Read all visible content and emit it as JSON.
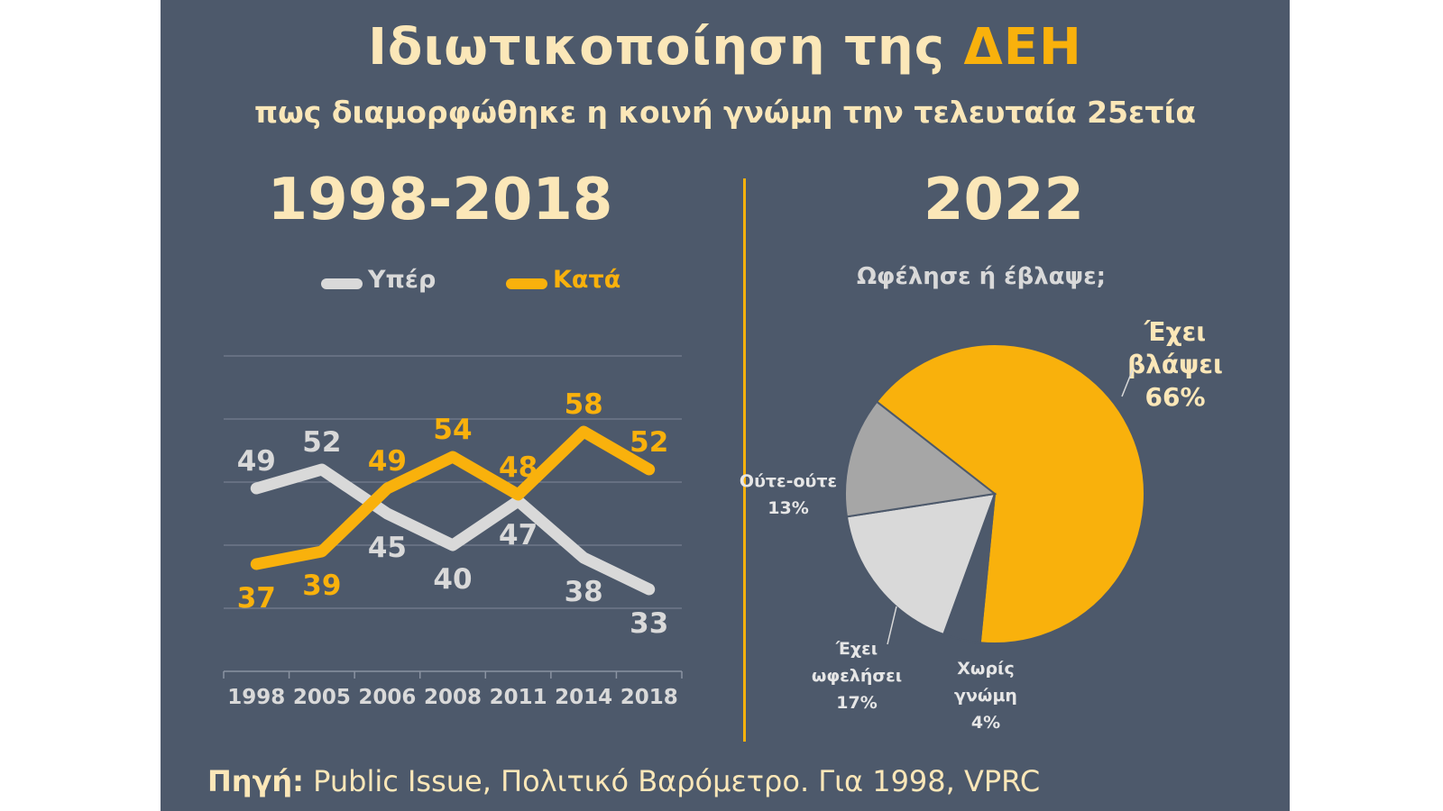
{
  "title": {
    "main": "Ιδιωτικοποίηση της",
    "accent": "ΔΕΗ",
    "subtitle": "πως διαμορφώθηκε η κοινή γνώμη την τελευταία 25ετία"
  },
  "left_period": "1998-2018",
  "right_period": "2022",
  "pie_question": "Ωφέλησε ή έβλαψε;",
  "source": {
    "key": "Πηγή:",
    "text": "Public Issue, Πολιτικό Βαρόμετρο. Για 1998, VPRC"
  },
  "colors": {
    "background": "#4d596b",
    "accent": "#f9b10c",
    "light_gray": "#d9d9d9",
    "mid_gray": "#a6a6a6",
    "cream": "#fbe7b8"
  },
  "chart_data": [
    {
      "type": "line",
      "categories": [
        "1998",
        "2005",
        "2006",
        "2008",
        "2011",
        "2014",
        "2018"
      ],
      "series": [
        {
          "name": "Υπέρ",
          "values": [
            49,
            52,
            45,
            40,
            47,
            38,
            33
          ],
          "color": "#d9d9d9"
        },
        {
          "name": "Κατά",
          "values": [
            37,
            39,
            49,
            54,
            48,
            58,
            52
          ],
          "color": "#f9b10c"
        }
      ],
      "ylim": [
        20,
        70
      ],
      "grid": true,
      "legend": "top"
    },
    {
      "type": "pie",
      "title": "Ωφέλησε ή έβλαψε;",
      "slices": [
        {
          "label_lines": [
            "Έχει",
            "βλάψει",
            "66%"
          ],
          "value": 66,
          "color": "#f9b10c"
        },
        {
          "label_lines": [
            "Χωρίς",
            "γνώμη",
            "4%"
          ],
          "value": 4,
          "color": "#4d596b"
        },
        {
          "label_lines": [
            "Έχει",
            "ωφελήσει",
            "17%"
          ],
          "value": 17,
          "color": "#d9d9d9"
        },
        {
          "label_lines": [
            "Ούτε-ούτε",
            "13%"
          ],
          "value": 13,
          "color": "#a6a6a6"
        }
      ]
    }
  ]
}
